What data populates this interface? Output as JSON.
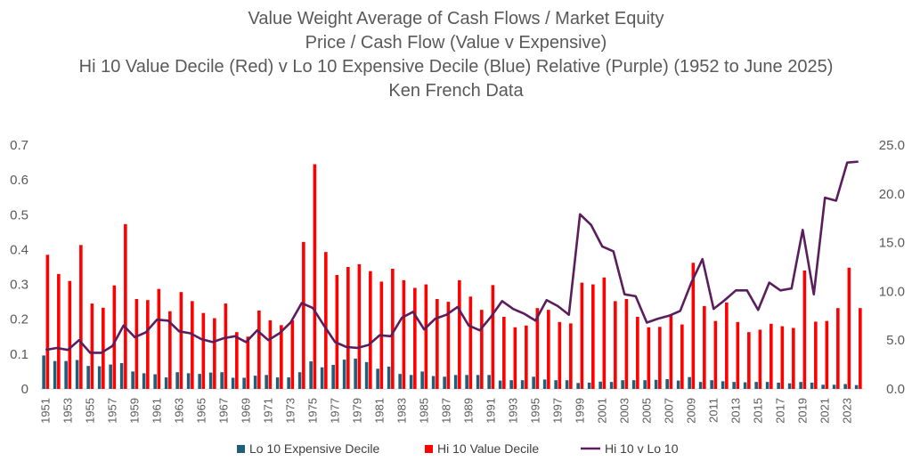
{
  "chart_data": {
    "type": "bar",
    "title_lines": [
      "Value Weight Average of Cash Flows / Market Equity",
      "Price / Cash Flow (Value v Expensive)",
      "Hi 10 Value Decile (Red) v Lo 10 Expensive Decile (Blue) Relative (Purple) (1952 to June 2025)",
      "Ken French Data"
    ],
    "x": [
      1951,
      1952,
      1953,
      1954,
      1955,
      1956,
      1957,
      1958,
      1959,
      1960,
      1961,
      1962,
      1963,
      1964,
      1965,
      1966,
      1967,
      1968,
      1969,
      1970,
      1971,
      1972,
      1973,
      1974,
      1975,
      1976,
      1977,
      1978,
      1979,
      1980,
      1981,
      1982,
      1983,
      1984,
      1985,
      1986,
      1987,
      1988,
      1989,
      1990,
      1991,
      1992,
      1993,
      1994,
      1995,
      1996,
      1997,
      1998,
      1999,
      2000,
      2001,
      2002,
      2003,
      2004,
      2005,
      2006,
      2007,
      2008,
      2009,
      2010,
      2011,
      2012,
      2013,
      2014,
      2015,
      2016,
      2017,
      2018,
      2019,
      2020,
      2021,
      2022,
      2023,
      2024
    ],
    "x_tick_labels": [
      "1951",
      "1953",
      "1955",
      "1957",
      "1959",
      "1961",
      "1963",
      "1965",
      "1967",
      "1969",
      "1971",
      "1973",
      "1975",
      "1977",
      "1979",
      "1981",
      "1983",
      "1985",
      "1987",
      "1989",
      "1991",
      "1993",
      "1995",
      "1997",
      "1999",
      "2001",
      "2003",
      "2005",
      "2007",
      "2009",
      "2011",
      "2013",
      "2015",
      "2017",
      "2019",
      "2021",
      "2023"
    ],
    "y_left": {
      "lim": [
        0,
        0.7
      ],
      "ticks": [
        "0",
        "0.1",
        "0.2",
        "0.3",
        "0.4",
        "0.5",
        "0.6",
        "0.7"
      ]
    },
    "y_right": {
      "lim": [
        0,
        25
      ],
      "ticks": [
        "0.0",
        "5.0",
        "10.0",
        "15.0",
        "20.0",
        "25.0"
      ]
    },
    "series": [
      {
        "name": "Lo 10  Expensive Decile",
        "kind": "bar",
        "axis": "left",
        "color": "#1f5f7a",
        "values": [
          0.096,
          0.08,
          0.08,
          0.083,
          0.066,
          0.065,
          0.07,
          0.074,
          0.05,
          0.045,
          0.042,
          0.033,
          0.048,
          0.045,
          0.043,
          0.047,
          0.048,
          0.032,
          0.032,
          0.038,
          0.04,
          0.033,
          0.033,
          0.048,
          0.079,
          0.062,
          0.069,
          0.084,
          0.087,
          0.077,
          0.058,
          0.064,
          0.043,
          0.04,
          0.05,
          0.037,
          0.035,
          0.04,
          0.04,
          0.04,
          0.04,
          0.024,
          0.025,
          0.025,
          0.035,
          0.027,
          0.025,
          0.025,
          0.017,
          0.018,
          0.021,
          0.02,
          0.025,
          0.025,
          0.025,
          0.026,
          0.028,
          0.024,
          0.034,
          0.02,
          0.025,
          0.022,
          0.02,
          0.019,
          0.02,
          0.02,
          0.018,
          0.016,
          0.02,
          0.018,
          0.012,
          0.012,
          0.014,
          0.011
        ]
      },
      {
        "name": "Hi 10 Value Decile",
        "kind": "bar",
        "axis": "left",
        "color": "#ff0000",
        "values": [
          0.385,
          0.33,
          0.31,
          0.413,
          0.245,
          0.233,
          0.297,
          0.473,
          0.258,
          0.255,
          0.287,
          0.223,
          0.278,
          0.252,
          0.218,
          0.203,
          0.245,
          0.163,
          0.15,
          0.225,
          0.197,
          0.183,
          0.197,
          0.422,
          0.645,
          0.393,
          0.327,
          0.35,
          0.358,
          0.338,
          0.308,
          0.345,
          0.312,
          0.29,
          0.3,
          0.258,
          0.25,
          0.312,
          0.265,
          0.227,
          0.298,
          0.207,
          0.177,
          0.182,
          0.232,
          0.227,
          0.192,
          0.188,
          0.305,
          0.3,
          0.32,
          0.252,
          0.258,
          0.207,
          0.177,
          0.178,
          0.213,
          0.185,
          0.362,
          0.238,
          0.195,
          0.248,
          0.192,
          0.163,
          0.17,
          0.187,
          0.18,
          0.175,
          0.34,
          0.193,
          0.195,
          0.232,
          0.348,
          0.232
        ]
      },
      {
        "name": "Hi 10 v Lo 10",
        "kind": "line",
        "axis": "right",
        "color": "#5b1e5c",
        "values": [
          4.0,
          4.2,
          4.0,
          5.0,
          3.7,
          3.7,
          4.4,
          6.5,
          5.3,
          5.8,
          7.1,
          7.0,
          5.9,
          5.7,
          5.1,
          4.8,
          5.2,
          5.4,
          4.8,
          6.0,
          5.0,
          5.7,
          6.8,
          8.8,
          8.3,
          6.5,
          4.8,
          4.3,
          4.2,
          4.5,
          5.5,
          5.4,
          7.3,
          7.9,
          6.1,
          7.2,
          7.6,
          8.4,
          6.5,
          6.0,
          7.4,
          9.0,
          8.2,
          7.7,
          7.0,
          9.1,
          8.5,
          7.6,
          17.9,
          16.8,
          14.6,
          14.1,
          9.7,
          9.5,
          6.8,
          7.2,
          7.5,
          8.0,
          10.9,
          13.3,
          8.2,
          9.1,
          10.1,
          10.1,
          8.1,
          10.9,
          10.1,
          10.3,
          16.3,
          9.7,
          19.6,
          19.3,
          23.2,
          23.3
        ]
      }
    ],
    "legend_position": "bottom",
    "grid": false
  }
}
